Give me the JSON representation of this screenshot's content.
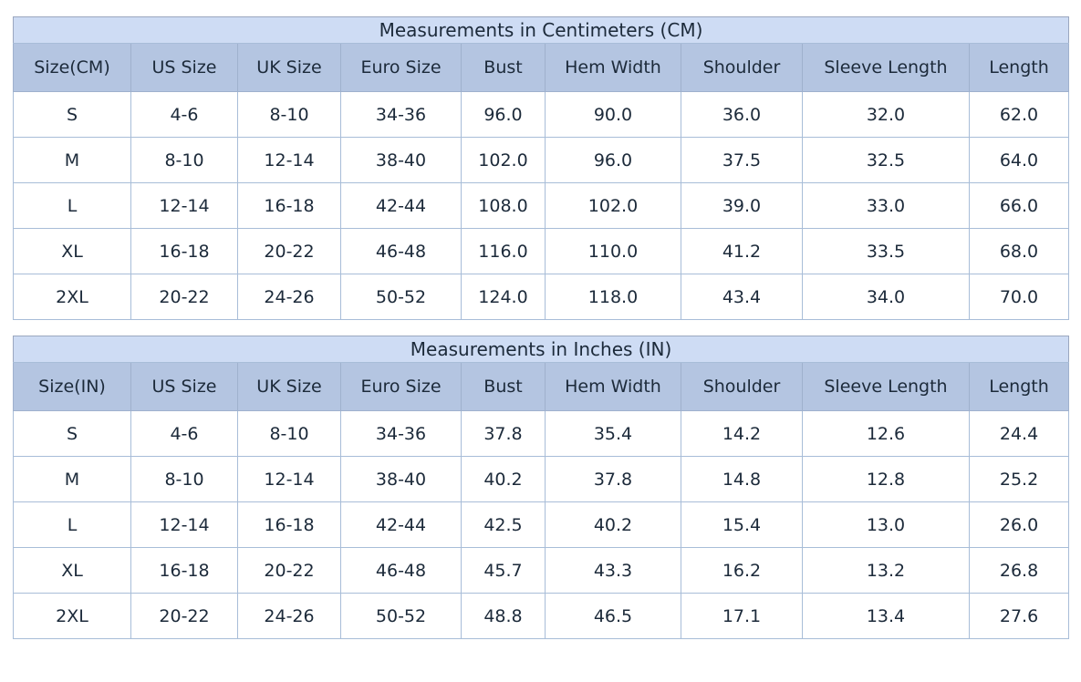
{
  "colors": {
    "title_bg": "#cedcf4",
    "header_bg": "#b4c5e1",
    "outer_border": "#9ba7bf",
    "inner_border": "#a8bdd8",
    "header_border": "#9fb1cd",
    "text": "#1c2a3a",
    "cell_bg": "#ffffff"
  },
  "chart_data": [
    {
      "type": "table",
      "title": "Measurements in Centimeters (CM)",
      "columns": [
        "Size(CM)",
        "US Size",
        "UK Size",
        "Euro Size",
        "Bust",
        "Hem Width",
        "Shoulder",
        "Sleeve Length",
        "Length"
      ],
      "rows": [
        [
          "S",
          "4-6",
          "8-10",
          "34-36",
          "96.0",
          "90.0",
          "36.0",
          "32.0",
          "62.0"
        ],
        [
          "M",
          "8-10",
          "12-14",
          "38-40",
          "102.0",
          "96.0",
          "37.5",
          "32.5",
          "64.0"
        ],
        [
          "L",
          "12-14",
          "16-18",
          "42-44",
          "108.0",
          "102.0",
          "39.0",
          "33.0",
          "66.0"
        ],
        [
          "XL",
          "16-18",
          "20-22",
          "46-48",
          "116.0",
          "110.0",
          "41.2",
          "33.5",
          "68.0"
        ],
        [
          "2XL",
          "20-22",
          "24-26",
          "50-52",
          "124.0",
          "118.0",
          "43.4",
          "34.0",
          "70.0"
        ]
      ]
    },
    {
      "type": "table",
      "title": "Measurements in Inches (IN)",
      "columns": [
        "Size(IN)",
        "US Size",
        "UK Size",
        "Euro Size",
        "Bust",
        "Hem Width",
        "Shoulder",
        "Sleeve Length",
        "Length"
      ],
      "rows": [
        [
          "S",
          "4-6",
          "8-10",
          "34-36",
          "37.8",
          "35.4",
          "14.2",
          "12.6",
          "24.4"
        ],
        [
          "M",
          "8-10",
          "12-14",
          "38-40",
          "40.2",
          "37.8",
          "14.8",
          "12.8",
          "25.2"
        ],
        [
          "L",
          "12-14",
          "16-18",
          "42-44",
          "42.5",
          "40.2",
          "15.4",
          "13.0",
          "26.0"
        ],
        [
          "XL",
          "16-18",
          "20-22",
          "46-48",
          "45.7",
          "43.3",
          "16.2",
          "13.2",
          "26.8"
        ],
        [
          "2XL",
          "20-22",
          "24-26",
          "50-52",
          "48.8",
          "46.5",
          "17.1",
          "13.4",
          "27.6"
        ]
      ]
    }
  ]
}
